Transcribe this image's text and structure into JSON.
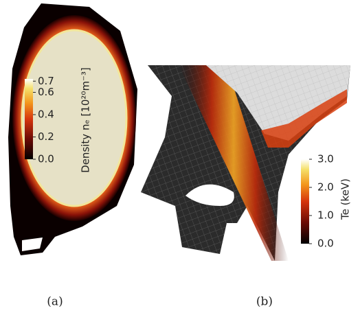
{
  "panels": [
    {
      "caption": "(a)",
      "colorbar": {
        "label": "Density nₑ [10²⁰m⁻³]",
        "range": [
          0,
          0.72
        ],
        "ticks": [
          {
            "value": 0.7,
            "label": "0.7"
          },
          {
            "value": 0.6,
            "label": "0.6"
          },
          {
            "value": 0.4,
            "label": "0.4"
          },
          {
            "value": 0.2,
            "label": "0.2"
          },
          {
            "value": 0,
            "label": "0.0"
          }
        ]
      }
    },
    {
      "caption": "(b)",
      "colorbar": {
        "label": "Te  (keV)",
        "range": [
          0,
          3
        ],
        "ticks": [
          {
            "value": 3,
            "label": "3.0"
          },
          {
            "value": 2,
            "label": "2.0"
          },
          {
            "value": 1,
            "label": "1.0"
          },
          {
            "value": 0,
            "label": "0.0"
          }
        ]
      }
    }
  ]
}
